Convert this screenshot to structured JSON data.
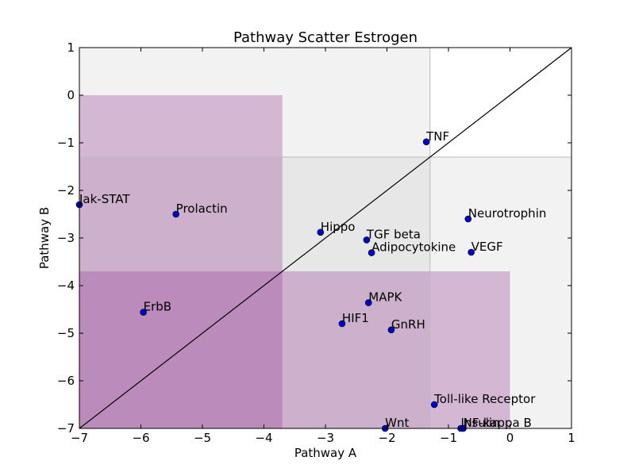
{
  "chart_data": {
    "type": "scatter",
    "title": "Pathway Scatter Estrogen",
    "xlabel": "Pathway A",
    "ylabel": "Pathway B",
    "xlim": [
      -7,
      1
    ],
    "ylim": [
      -7,
      1
    ],
    "xticks": [
      -7,
      -6,
      -5,
      -4,
      -3,
      -2,
      -1,
      0,
      1
    ],
    "yticks": [
      -7,
      -6,
      -5,
      -4,
      -3,
      -2,
      -1,
      0,
      1
    ],
    "xtick_labels": [
      "−7",
      "−6",
      "−5",
      "−4",
      "−3",
      "−2",
      "−1",
      "0",
      "1"
    ],
    "ytick_labels": [
      "−7",
      "−6",
      "−5",
      "−4",
      "−3",
      "−2",
      "−1",
      "0",
      "1"
    ],
    "diagonal_line": {
      "from": [
        -7,
        -7
      ],
      "to": [
        1,
        1
      ],
      "color": "#000000"
    },
    "threshold_x": -1.3,
    "threshold_y": -1.3,
    "regions": [
      {
        "x0": -7,
        "x1": -1.3,
        "y0": -7,
        "y1": 1,
        "color": "#bfbfbf",
        "opacity": 0.2
      },
      {
        "x0": -7,
        "x1": 1,
        "y0": -7,
        "y1": -1.3,
        "color": "#bfbfbf",
        "opacity": 0.2
      },
      {
        "x0": -7,
        "x1": -3.7,
        "y0": -7,
        "y1": 0,
        "color": "#9b4b9b",
        "opacity": 0.35
      },
      {
        "x0": -7,
        "x1": 0,
        "y0": -7,
        "y1": -3.7,
        "color": "#9b4b9b",
        "opacity": 0.35
      }
    ],
    "marker_color": "#0000cc",
    "points": [
      {
        "name": "TNF",
        "x": -1.36,
        "y": -0.98
      },
      {
        "name": "Jak-STAT",
        "x": -7.0,
        "y": -2.3
      },
      {
        "name": "Prolactin",
        "x": -5.43,
        "y": -2.5
      },
      {
        "name": "Hippo",
        "x": -3.08,
        "y": -2.88
      },
      {
        "name": "TGF beta",
        "x": -2.33,
        "y": -3.04
      },
      {
        "name": "Adipocytokine",
        "x": -2.25,
        "y": -3.31
      },
      {
        "name": "Neurotrophin",
        "x": -0.68,
        "y": -2.6
      },
      {
        "name": "VEGF",
        "x": -0.63,
        "y": -3.3
      },
      {
        "name": "ErbB",
        "x": -5.96,
        "y": -4.56
      },
      {
        "name": "MAPK",
        "x": -2.3,
        "y": -4.36
      },
      {
        "name": "HIF1",
        "x": -2.73,
        "y": -4.8
      },
      {
        "name": "GnRH",
        "x": -1.93,
        "y": -4.93
      },
      {
        "name": "Toll-like Receptor",
        "x": -1.23,
        "y": -6.5
      },
      {
        "name": "Wnt",
        "x": -2.03,
        "y": -7.0
      },
      {
        "name": "Insulin",
        "x": -0.8,
        "y": -7.0
      },
      {
        "name": "NF-kappa B",
        "x": -0.76,
        "y": -7.0
      }
    ]
  }
}
